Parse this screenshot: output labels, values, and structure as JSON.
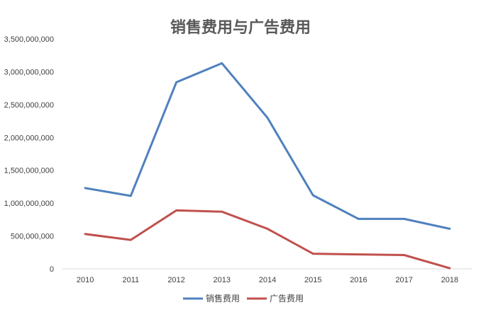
{
  "chart_data": {
    "type": "line",
    "title": "销售费用与广告费用",
    "categories": [
      "2010",
      "2011",
      "2012",
      "2013",
      "2014",
      "2015",
      "2016",
      "2017",
      "2018"
    ],
    "y_ticks": [
      "0",
      "500,000,000",
      "1,000,000,000",
      "1,500,000,000",
      "2,000,000,000",
      "2,500,000,000",
      "3,000,000,000",
      "3,500,000,000"
    ],
    "ylim": [
      0,
      3500000000
    ],
    "grid": false,
    "legend_position": "bottom",
    "series": [
      {
        "name": "销售费用",
        "color": "#4f81bd",
        "values": [
          1230000000,
          1110000000,
          2840000000,
          3130000000,
          2300000000,
          1120000000,
          760000000,
          760000000,
          610000000
        ]
      },
      {
        "name": "广告费用",
        "color": "#c0504d",
        "values": [
          530000000,
          440000000,
          890000000,
          870000000,
          610000000,
          230000000,
          220000000,
          210000000,
          10000000
        ]
      }
    ]
  }
}
